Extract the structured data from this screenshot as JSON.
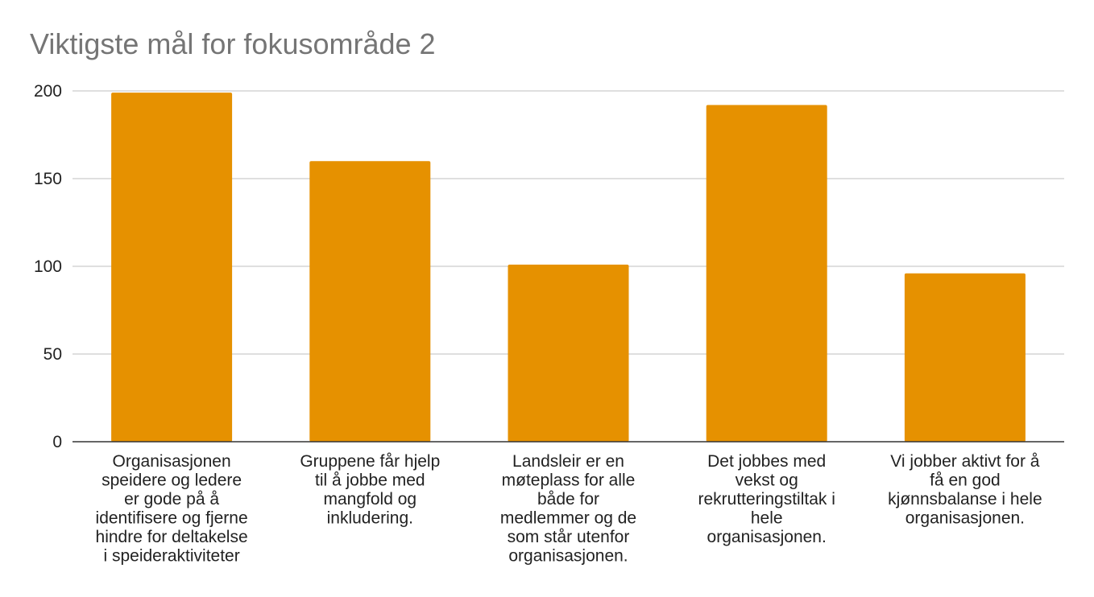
{
  "chart_data": {
    "type": "bar",
    "title": "Viktigste mål for fokusområde 2",
    "xlabel": "",
    "ylabel": "",
    "categories": [
      [
        "Organisasjonen",
        "speidere og ledere",
        "er gode på å",
        "identifisere og fjerne",
        "hindre for deltakelse",
        "i speideraktiviteter"
      ],
      [
        "Gruppene får hjelp",
        "til å jobbe med",
        "mangfold og",
        "inkludering."
      ],
      [
        "Landsleir er en",
        "møteplass for alle",
        "både for",
        "medlemmer og de",
        "som står utenfor",
        "organisasjonen."
      ],
      [
        "Det jobbes med",
        "vekst og",
        "rekrutteringstiltak i",
        "hele",
        "organisasjonen."
      ],
      [
        "Vi jobber aktivt for å",
        "få en god",
        "kjønnsbalanse i hele",
        "organisasjonen."
      ]
    ],
    "values": [
      199,
      160,
      101,
      192,
      96
    ],
    "ylim": [
      0,
      200
    ],
    "yticks": [
      0,
      50,
      100,
      150,
      200
    ],
    "grid": true,
    "legend": "none",
    "bar_color": "#e69100"
  }
}
